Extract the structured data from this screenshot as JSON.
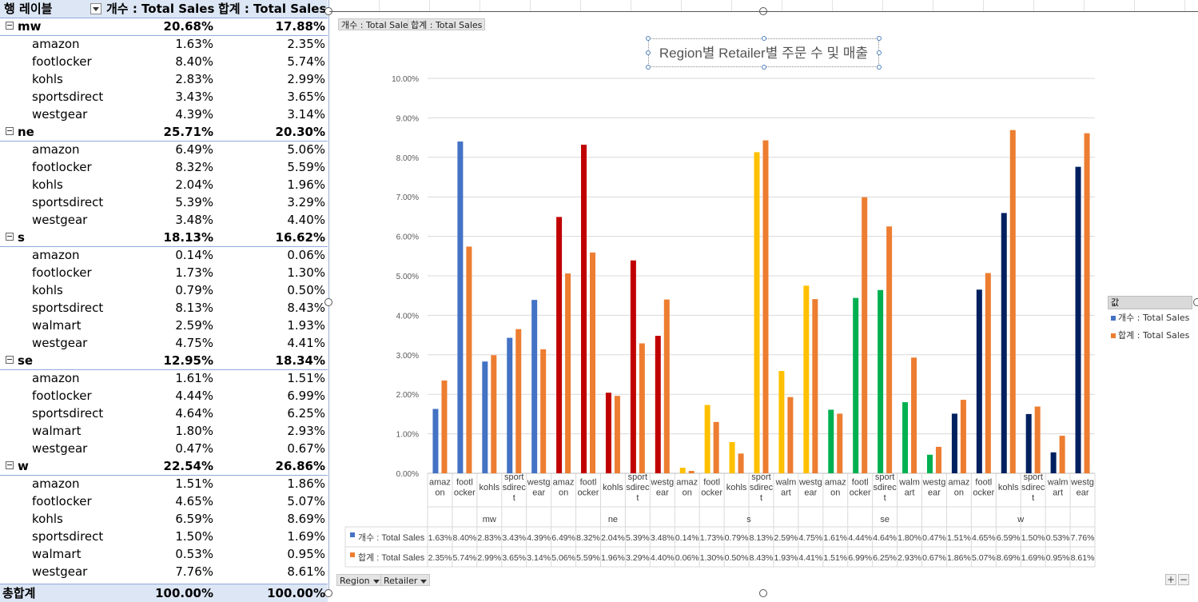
{
  "pivot": {
    "header": {
      "row_label": "행 레이블",
      "col1": "개수 : Total Sales",
      "col2": "합계 : Total Sales"
    },
    "groups": [
      {
        "name": "mw",
        "v1": "20.68%",
        "v2": "17.88%",
        "items": [
          {
            "name": "amazon",
            "v1": "1.63%",
            "v2": "2.35%"
          },
          {
            "name": "footlocker",
            "v1": "8.40%",
            "v2": "5.74%"
          },
          {
            "name": "kohls",
            "v1": "2.83%",
            "v2": "2.99%"
          },
          {
            "name": "sportsdirect",
            "v1": "3.43%",
            "v2": "3.65%"
          },
          {
            "name": "westgear",
            "v1": "4.39%",
            "v2": "3.14%"
          }
        ]
      },
      {
        "name": "ne",
        "v1": "25.71%",
        "v2": "20.30%",
        "items": [
          {
            "name": "amazon",
            "v1": "6.49%",
            "v2": "5.06%"
          },
          {
            "name": "footlocker",
            "v1": "8.32%",
            "v2": "5.59%"
          },
          {
            "name": "kohls",
            "v1": "2.04%",
            "v2": "1.96%"
          },
          {
            "name": "sportsdirect",
            "v1": "5.39%",
            "v2": "3.29%"
          },
          {
            "name": "westgear",
            "v1": "3.48%",
            "v2": "4.40%"
          }
        ]
      },
      {
        "name": "s",
        "v1": "18.13%",
        "v2": "16.62%",
        "items": [
          {
            "name": "amazon",
            "v1": "0.14%",
            "v2": "0.06%"
          },
          {
            "name": "footlocker",
            "v1": "1.73%",
            "v2": "1.30%"
          },
          {
            "name": "kohls",
            "v1": "0.79%",
            "v2": "0.50%"
          },
          {
            "name": "sportsdirect",
            "v1": "8.13%",
            "v2": "8.43%"
          },
          {
            "name": "walmart",
            "v1": "2.59%",
            "v2": "1.93%"
          },
          {
            "name": "westgear",
            "v1": "4.75%",
            "v2": "4.41%"
          }
        ]
      },
      {
        "name": "se",
        "v1": "12.95%",
        "v2": "18.34%",
        "items": [
          {
            "name": "amazon",
            "v1": "1.61%",
            "v2": "1.51%"
          },
          {
            "name": "footlocker",
            "v1": "4.44%",
            "v2": "6.99%"
          },
          {
            "name": "sportsdirect",
            "v1": "4.64%",
            "v2": "6.25%"
          },
          {
            "name": "walmart",
            "v1": "1.80%",
            "v2": "2.93%"
          },
          {
            "name": "westgear",
            "v1": "0.47%",
            "v2": "0.67%"
          }
        ]
      },
      {
        "name": "w",
        "v1": "22.54%",
        "v2": "26.86%",
        "items": [
          {
            "name": "amazon",
            "v1": "1.51%",
            "v2": "1.86%"
          },
          {
            "name": "footlocker",
            "v1": "4.65%",
            "v2": "5.07%"
          },
          {
            "name": "kohls",
            "v1": "6.59%",
            "v2": "8.69%"
          },
          {
            "name": "sportsdirect",
            "v1": "1.50%",
            "v2": "1.69%"
          },
          {
            "name": "walmart",
            "v1": "0.53%",
            "v2": "0.95%"
          },
          {
            "name": "westgear",
            "v1": "7.76%",
            "v2": "8.61%"
          }
        ]
      }
    ],
    "total": {
      "label": "총합계",
      "v1": "100.00%",
      "v2": "100.00%"
    }
  },
  "chart_fields": {
    "value1": "개수 : Total Sales",
    "value2": "합계 : Total Sales",
    "region": "Region",
    "retailer": "Retailer"
  },
  "legend": {
    "header": "값",
    "items": [
      "개수 : Total Sales",
      "합계 : Total Sales"
    ]
  },
  "colors": {
    "mw": "#4472c4",
    "ne": "#c00000",
    "s": "#ffc000",
    "se": "#00b050",
    "w": "#002060",
    "sum": "#ed7d31",
    "legend_count": "#4472c4"
  },
  "chart_data": {
    "type": "bar",
    "title": "Region별 Retailer별 주문 수 및 매출",
    "ylim": [
      0,
      10
    ],
    "yticks": [
      "0.00%",
      "1.00%",
      "2.00%",
      "3.00%",
      "4.00%",
      "5.00%",
      "6.00%",
      "7.00%",
      "8.00%",
      "9.00%",
      "10.00%"
    ],
    "grid": true,
    "legend_position": "right",
    "groups": [
      {
        "name": "mw",
        "categories": [
          "amazon",
          "footlocker",
          "kohls",
          "sportsdirect",
          "westgear"
        ],
        "count": [
          1.63,
          8.4,
          2.83,
          3.43,
          4.39
        ],
        "sum": [
          2.35,
          5.74,
          2.99,
          3.65,
          3.14
        ]
      },
      {
        "name": "ne",
        "categories": [
          "amazon",
          "footlocker",
          "kohls",
          "sportsdirect",
          "westgear"
        ],
        "count": [
          6.49,
          8.32,
          2.04,
          5.39,
          3.48
        ],
        "sum": [
          5.06,
          5.59,
          1.96,
          3.29,
          4.4
        ]
      },
      {
        "name": "s",
        "categories": [
          "amazon",
          "footlocker",
          "kohls",
          "sportsdirect",
          "walmart",
          "westgear"
        ],
        "count": [
          0.14,
          1.73,
          0.79,
          8.13,
          2.59,
          4.75
        ],
        "sum": [
          0.06,
          1.3,
          0.5,
          8.43,
          1.93,
          4.41
        ]
      },
      {
        "name": "se",
        "categories": [
          "amazon",
          "footlocker",
          "sportsdirect",
          "walmart",
          "westgear"
        ],
        "count": [
          1.61,
          4.44,
          4.64,
          1.8,
          0.47
        ],
        "sum": [
          1.51,
          6.99,
          6.25,
          2.93,
          0.67
        ]
      },
      {
        "name": "w",
        "categories": [
          "amazon",
          "footlocker",
          "kohls",
          "sportsdirect",
          "walmart",
          "westgear"
        ],
        "count": [
          1.51,
          4.65,
          6.59,
          1.5,
          0.53,
          7.76
        ],
        "sum": [
          1.86,
          5.07,
          8.69,
          1.69,
          0.95,
          8.61
        ]
      }
    ],
    "category_labels": {
      "amazon": "amaz|on",
      "footlocker": "footl|ocker",
      "kohls": "kohls",
      "sportsdirect": "sport|sdirec|t",
      "walmart": "walm|art",
      "westgear": "westg|ear"
    },
    "table_rows": [
      {
        "series": "개수 : Total Sales",
        "values": [
          "1.63%",
          "8.40%",
          "2.83%",
          "3.43%",
          "4.39%",
          "6.49%",
          "8.32%",
          "2.04%",
          "5.39%",
          "3.48%",
          "0.14%",
          "1.73%",
          "0.79%",
          "8.13%",
          "2.59%",
          "4.75%",
          "1.61%",
          "4.44%",
          "4.64%",
          "1.80%",
          "0.47%",
          "1.51%",
          "4.65%",
          "6.59%",
          "1.50%",
          "0.53%",
          "7.76%"
        ]
      },
      {
        "series": "합계 : Total Sales",
        "values": [
          "2.35%",
          "5.74%",
          "2.99%",
          "3.65%",
          "3.14%",
          "5.06%",
          "5.59%",
          "1.96%",
          "3.29%",
          "4.40%",
          "0.06%",
          "1.30%",
          "0.50%",
          "8.43%",
          "1.93%",
          "4.41%",
          "1.51%",
          "6.99%",
          "6.25%",
          "2.93%",
          "0.67%",
          "1.86%",
          "5.07%",
          "8.69%",
          "1.69%",
          "0.95%",
          "8.61%"
        ]
      }
    ]
  }
}
